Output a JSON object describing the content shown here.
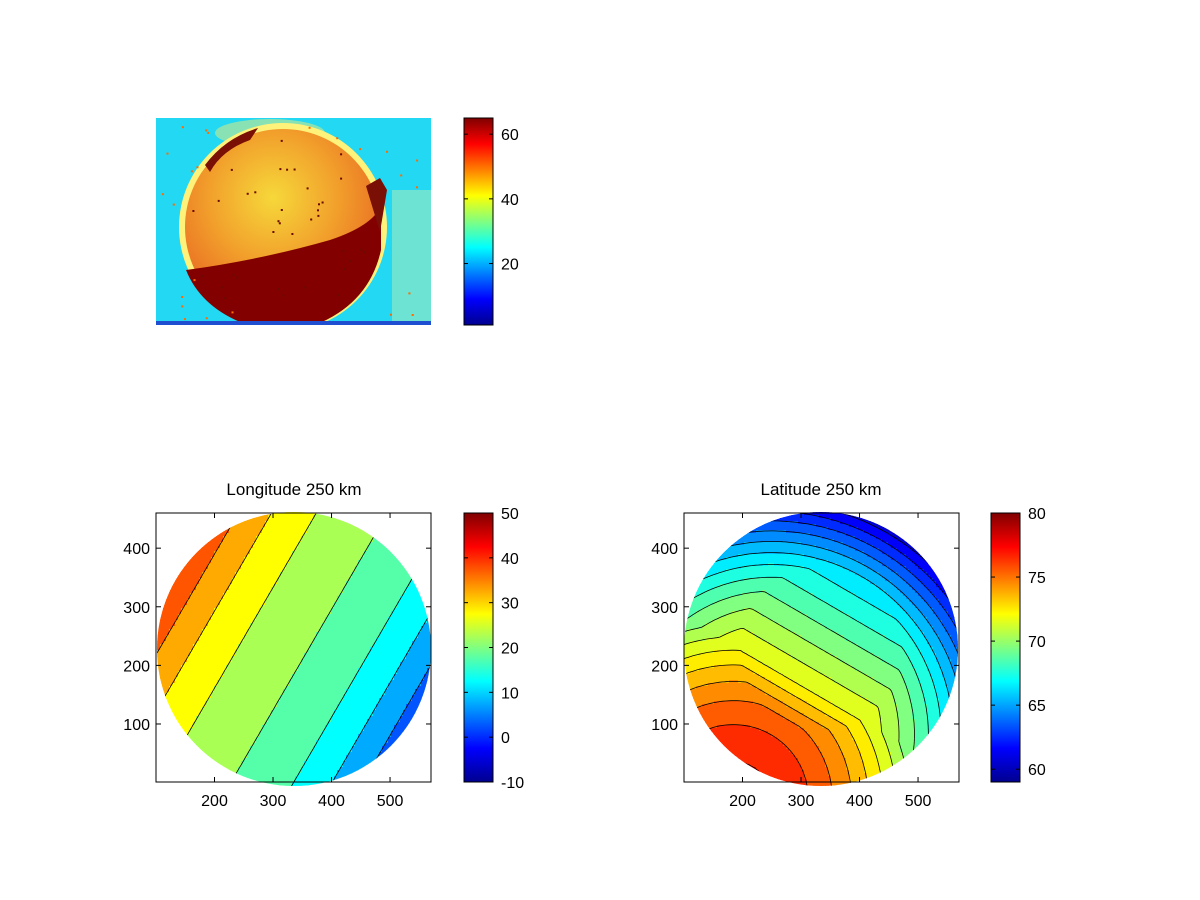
{
  "colormap": [
    "#00008f",
    "#0000ff",
    "#0080ff",
    "#00ffff",
    "#80ff80",
    "#ffff00",
    "#ff8000",
    "#ff0000",
    "#800000"
  ],
  "chart_data": [
    {
      "type": "heatmap",
      "id": "image-panel",
      "title": "",
      "image_label": "",
      "colorbar": {
        "min": 1,
        "max": 65,
        "ticks": [
          20,
          40,
          60
        ],
        "tick_labels": [
          "20",
          "40",
          "60"
        ]
      }
    },
    {
      "type": "heatmap",
      "id": "longitude-panel",
      "title": "Longitude 250 km",
      "xlim": [
        100,
        570
      ],
      "ylim": [
        1,
        460
      ],
      "x_ticks": [
        200,
        300,
        400,
        500
      ],
      "x_tick_labels": [
        "200",
        "300",
        "400",
        "500"
      ],
      "y_ticks": [
        100,
        200,
        300,
        400
      ],
      "y_tick_labels": [
        "100",
        "200",
        "300",
        "400"
      ],
      "colorbar": {
        "min": -10,
        "max": 50,
        "ticks": [
          -10,
          0,
          10,
          20,
          30,
          40,
          50
        ],
        "tick_labels": [
          "-10",
          "0",
          "10",
          "20",
          "30",
          "40",
          "50"
        ]
      },
      "contour_step": 2.5
    },
    {
      "type": "heatmap",
      "id": "latitude-panel",
      "title": "Latitude 250 km",
      "xlim": [
        100,
        570
      ],
      "ylim": [
        1,
        460
      ],
      "x_ticks": [
        200,
        300,
        400,
        500
      ],
      "x_tick_labels": [
        "200",
        "300",
        "400",
        "500"
      ],
      "y_ticks": [
        100,
        200,
        300,
        400
      ],
      "y_tick_labels": [
        "100",
        "200",
        "300",
        "400"
      ],
      "colorbar": {
        "min": 59,
        "max": 80,
        "ticks": [
          60,
          65,
          70,
          75,
          80
        ],
        "tick_labels": [
          "60",
          "65",
          "70",
          "75",
          "80"
        ]
      },
      "contour_step": 1
    }
  ]
}
